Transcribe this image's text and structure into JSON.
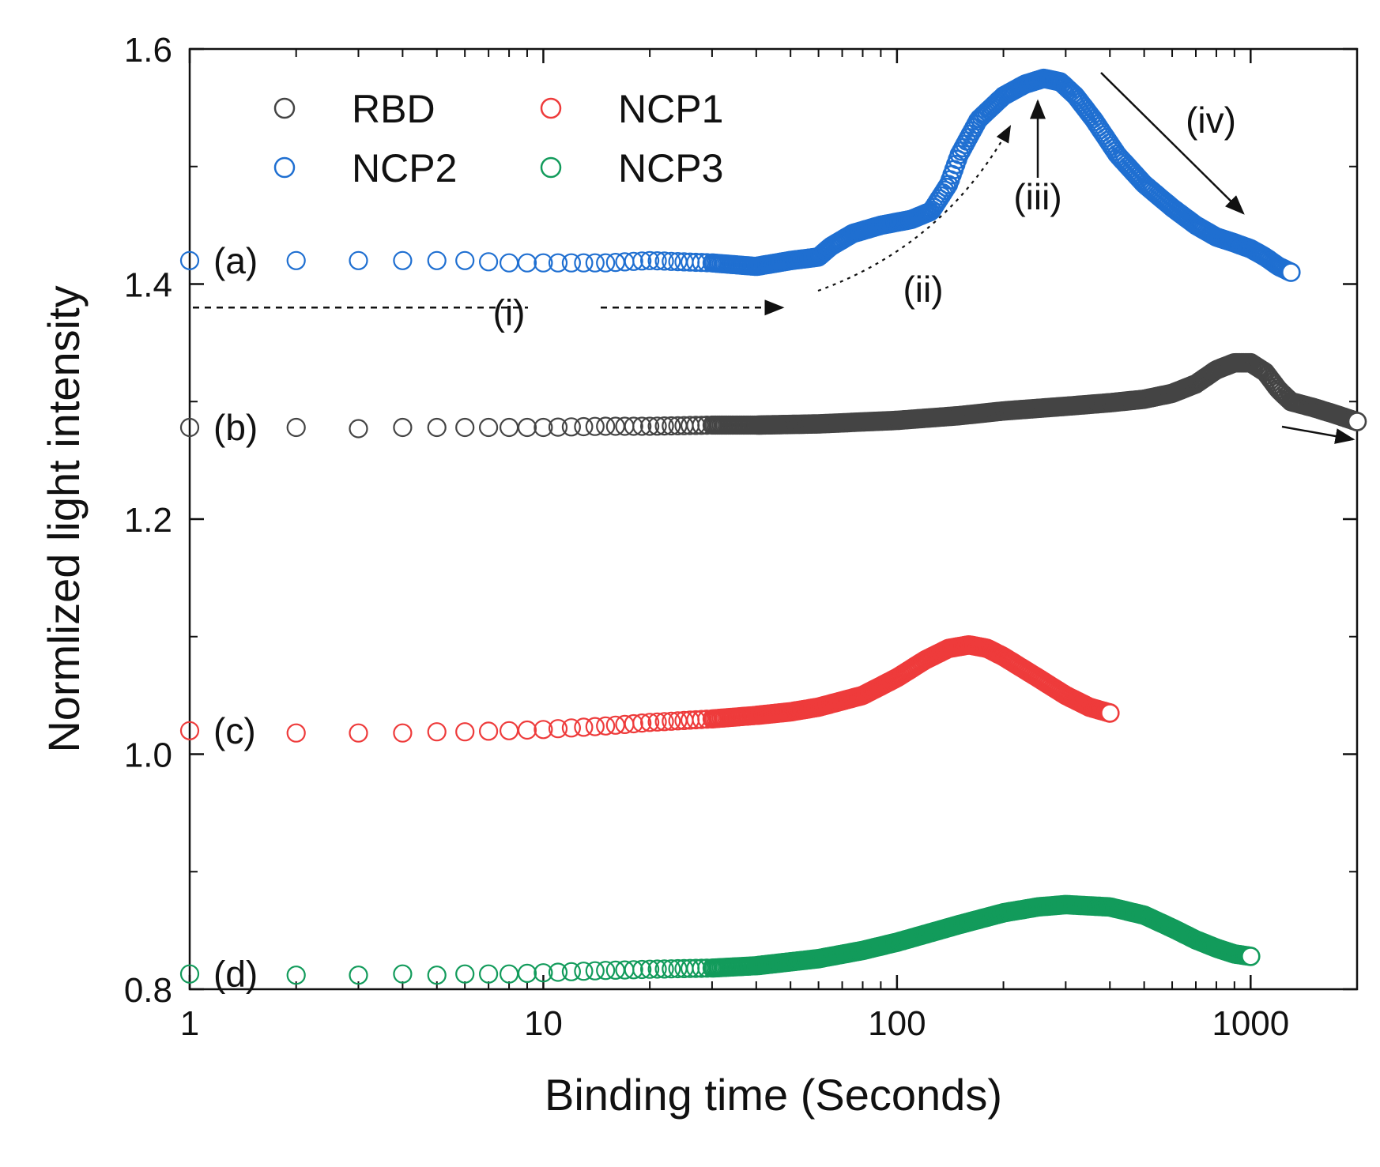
{
  "chart_data": {
    "type": "scatter",
    "xscale": "log",
    "xlim": [
      1,
      2000
    ],
    "ylim": [
      0.8,
      1.6
    ],
    "xlabel": "Binding time (Seconds)",
    "ylabel": "Normlized light intensity",
    "xticks": [
      {
        "value": 1,
        "label": "1"
      },
      {
        "value": 10,
        "label": "10"
      },
      {
        "value": 100,
        "label": "100"
      },
      {
        "value": 1000,
        "label": "1000"
      }
    ],
    "yticks": [
      {
        "value": 0.8,
        "label": "0.8"
      },
      {
        "value": 1.0,
        "label": "1.0"
      },
      {
        "value": 1.2,
        "label": "1.2"
      },
      {
        "value": 1.4,
        "label": "1.4"
      },
      {
        "value": 1.6,
        "label": "1.6"
      }
    ],
    "legend": {
      "position": "top-left",
      "entries": [
        {
          "label": "RBD",
          "color": "#444444"
        },
        {
          "label": "NCP1",
          "color": "#ee3b3b"
        },
        {
          "label": "NCP2",
          "color": "#1f6fd1"
        },
        {
          "label": "NCP3",
          "color": "#129b5b"
        }
      ]
    },
    "series": [
      {
        "name": "NCP2",
        "curve_label": "(a)",
        "color": "#1f6fd1",
        "x": [
          1,
          2,
          3,
          4,
          5,
          6,
          8,
          10,
          15,
          20,
          30,
          40,
          50,
          60,
          65,
          75,
          90,
          110,
          125,
          140,
          150,
          170,
          200,
          230,
          260,
          290,
          320,
          360,
          420,
          500,
          600,
          700,
          800,
          900,
          1000,
          1100,
          1200,
          1300
        ],
        "y": [
          1.42,
          1.42,
          1.42,
          1.42,
          1.42,
          1.42,
          1.418,
          1.418,
          1.418,
          1.42,
          1.418,
          1.415,
          1.42,
          1.423,
          1.432,
          1.443,
          1.45,
          1.455,
          1.462,
          1.485,
          1.51,
          1.54,
          1.56,
          1.57,
          1.575,
          1.572,
          1.56,
          1.54,
          1.51,
          1.485,
          1.465,
          1.45,
          1.44,
          1.435,
          1.43,
          1.423,
          1.415,
          1.41
        ]
      },
      {
        "name": "RBD",
        "curve_label": "(b)",
        "color": "#444444",
        "x": [
          1,
          2,
          3,
          4,
          5,
          6,
          8,
          10,
          15,
          20,
          30,
          40,
          60,
          100,
          150,
          200,
          300,
          400,
          500,
          600,
          700,
          800,
          900,
          1000,
          1100,
          1200,
          1300,
          1500,
          1700,
          2000
        ],
        "y": [
          1.278,
          1.278,
          1.277,
          1.278,
          1.278,
          1.278,
          1.278,
          1.278,
          1.279,
          1.279,
          1.28,
          1.28,
          1.281,
          1.284,
          1.288,
          1.292,
          1.296,
          1.299,
          1.302,
          1.307,
          1.315,
          1.327,
          1.333,
          1.333,
          1.325,
          1.31,
          1.3,
          1.295,
          1.29,
          1.283
        ]
      },
      {
        "name": "NCP1",
        "curve_label": "(c)",
        "color": "#ee3b3b",
        "x": [
          1,
          2,
          3,
          4,
          5,
          6,
          8,
          10,
          15,
          20,
          30,
          40,
          50,
          60,
          80,
          100,
          120,
          140,
          160,
          180,
          200,
          250,
          300,
          350,
          400
        ],
        "y": [
          1.02,
          1.018,
          1.018,
          1.018,
          1.019,
          1.019,
          1.02,
          1.021,
          1.024,
          1.027,
          1.03,
          1.033,
          1.036,
          1.04,
          1.05,
          1.065,
          1.08,
          1.09,
          1.093,
          1.09,
          1.083,
          1.065,
          1.05,
          1.04,
          1.035
        ]
      },
      {
        "name": "NCP3",
        "curve_label": "(d)",
        "color": "#129b5b",
        "x": [
          1,
          2,
          3,
          4,
          5,
          6,
          8,
          10,
          15,
          20,
          30,
          40,
          60,
          80,
          100,
          150,
          200,
          250,
          300,
          400,
          500,
          600,
          700,
          800,
          900,
          1000
        ],
        "y": [
          0.813,
          0.812,
          0.812,
          0.813,
          0.812,
          0.813,
          0.813,
          0.814,
          0.816,
          0.817,
          0.818,
          0.82,
          0.826,
          0.833,
          0.84,
          0.855,
          0.865,
          0.87,
          0.872,
          0.87,
          0.863,
          0.852,
          0.842,
          0.835,
          0.83,
          0.828
        ]
      }
    ],
    "annotations": [
      {
        "id": "i",
        "text": "(i)",
        "x": 8,
        "y": 1.375
      },
      {
        "id": "ii",
        "text": "(ii)",
        "x": 130,
        "y": 1.395
      },
      {
        "id": "iii",
        "text": "(iii)",
        "x": 255,
        "y": 1.48
      },
      {
        "id": "iv",
        "text": "(iv)",
        "x": 800,
        "y": 1.535
      }
    ]
  }
}
